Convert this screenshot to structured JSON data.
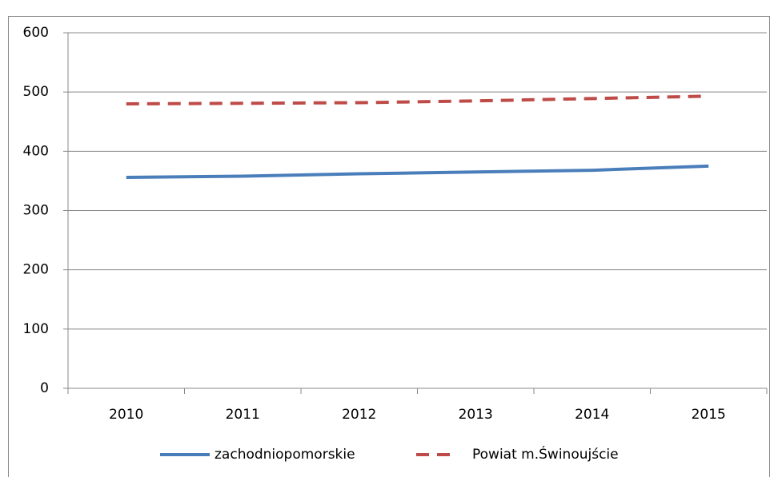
{
  "chart_data": {
    "type": "line",
    "categories": [
      "2010",
      "2011",
      "2012",
      "2013",
      "2014",
      "2015"
    ],
    "series": [
      {
        "name": "zachodniopomorskie",
        "color": "#4a7ebb",
        "dash": false,
        "values": [
          356,
          358,
          362,
          365,
          368,
          375
        ]
      },
      {
        "name": "Powiat m.Świnoujście",
        "color": "#be4b48",
        "dash": true,
        "values": [
          480,
          481,
          482,
          485,
          489,
          493
        ]
      }
    ],
    "ylim": [
      0,
      600
    ],
    "yticks": [
      0,
      100,
      200,
      300,
      400,
      500,
      600
    ],
    "grid": true,
    "legend": "bottom"
  }
}
